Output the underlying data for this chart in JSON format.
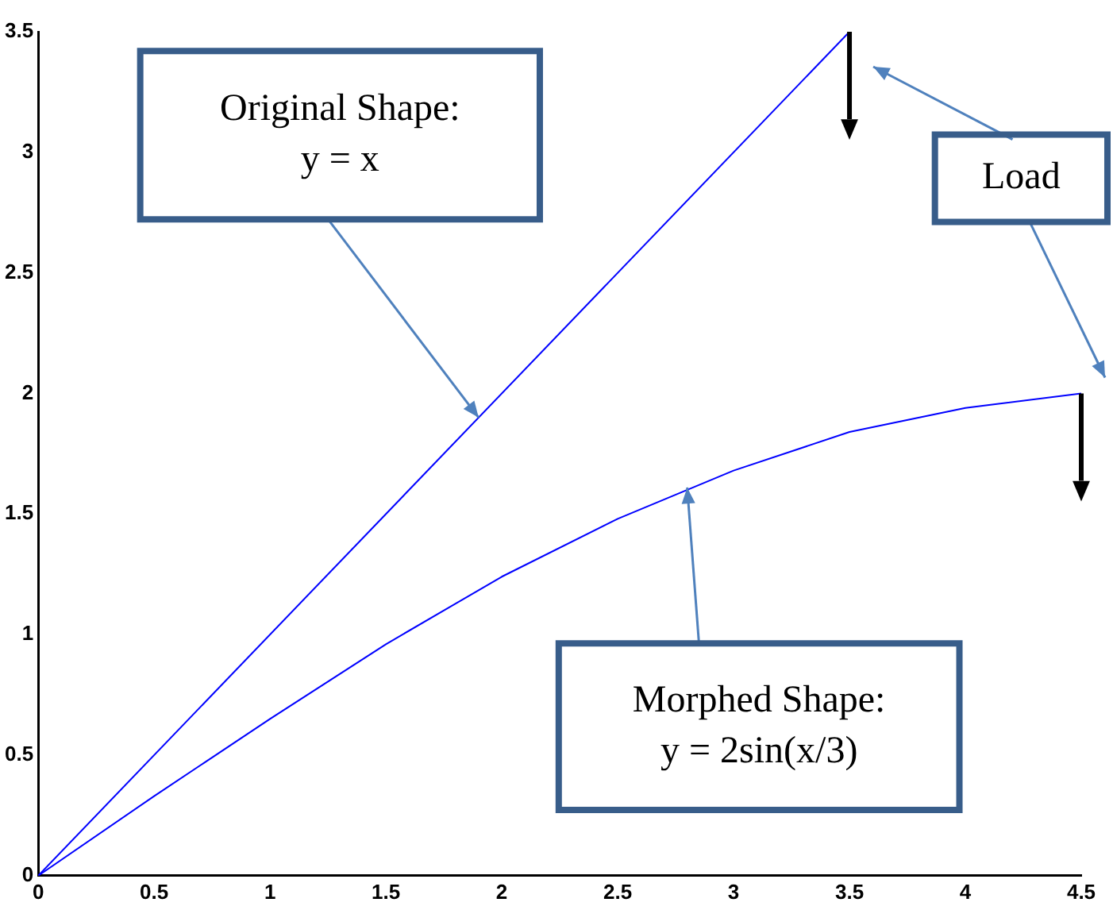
{
  "chart_data": {
    "type": "line",
    "x": [
      0,
      0.5,
      1,
      1.5,
      2,
      2.5,
      3,
      3.5,
      4,
      4.5
    ],
    "series": [
      {
        "color": "#0000ff",
        "x": [
          0,
          3.5
        ],
        "values": [
          0,
          3.5
        ]
      },
      {
        "color": "#0000ff",
        "values": [
          0,
          0.33,
          0.65,
          0.96,
          1.24,
          1.48,
          1.68,
          1.84,
          1.94,
          2.0
        ]
      }
    ],
    "xlim": [
      0,
      4.5
    ],
    "xticks": [
      0,
      0.5,
      1,
      1.5,
      2,
      2.5,
      3,
      3.5,
      4,
      4.5
    ],
    "ylim": [
      0,
      3.5
    ],
    "yticks": [
      0,
      0.5,
      1,
      1.5,
      2,
      2.5,
      3,
      3.5
    ],
    "grid": false,
    "marker": "none",
    "line_style": "solid",
    "annotations": [
      {
        "text": "Original Shape:\ny = x",
        "x": 1.9,
        "y": 1.9
      },
      "Load",
      {
        "text": "Morphed Shape:\ny = 2sin(x/3)",
        "x": 2.8,
        "y": 1.61
      }
    ]
  }
}
